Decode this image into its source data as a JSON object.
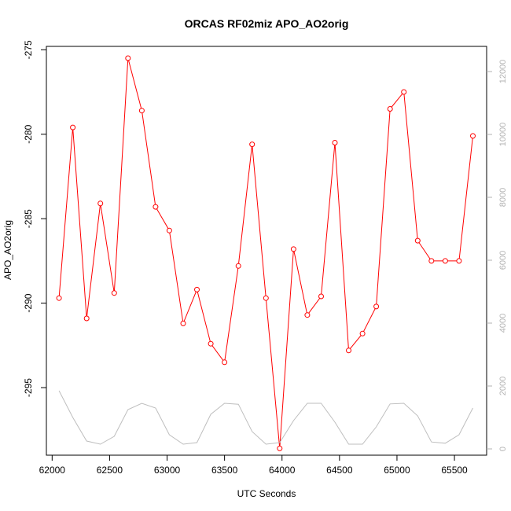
{
  "chart_data": {
    "type": "line",
    "title": "ORCAS RF02miz APO_AO2orig",
    "xlabel": "UTC Seconds",
    "ylabel": "APO_AO2orig",
    "xlim": [
      61950,
      65780
    ],
    "ylim": [
      -299.0,
      -274.8
    ],
    "y2lim": [
      -200,
      12800
    ],
    "x_ticks": [
      62000,
      62500,
      63000,
      63500,
      64000,
      64500,
      65000,
      65500
    ],
    "y_ticks": [
      -295,
      -290,
      -285,
      -280,
      -275
    ],
    "y2_ticks": [
      0,
      2000,
      4000,
      6000,
      8000,
      10000,
      12000
    ],
    "grid": false,
    "colors": {
      "primary": "#ff0000",
      "secondary": "#bebebe",
      "axis": "#000000",
      "right_axis": "#b3b3b3"
    },
    "series": [
      {
        "axis": "left",
        "style": "line+points",
        "x": [
          62060,
          62180,
          62300,
          62420,
          62540,
          62660,
          62780,
          62900,
          63020,
          63140,
          63260,
          63380,
          63500,
          63620,
          63740,
          63860,
          63980,
          64100,
          64220,
          64340,
          64460,
          64580,
          64700,
          64820,
          64940,
          65060,
          65180,
          65300,
          65420,
          65540,
          65660
        ],
        "y": [
          -289.7,
          -279.6,
          -290.9,
          -284.1,
          -289.4,
          -275.5,
          -278.6,
          -284.3,
          -285.7,
          -291.2,
          -289.2,
          -292.4,
          -293.5,
          -287.8,
          -280.6,
          -289.7,
          -298.6,
          -286.8,
          -290.7,
          -289.6,
          -280.5,
          -292.8,
          -291.8,
          -290.2,
          -278.5,
          -277.5,
          -286.3,
          -287.5,
          -287.5,
          -287.5,
          -280.1
        ]
      },
      {
        "axis": "right",
        "style": "line",
        "x": [
          62060,
          62180,
          62300,
          62420,
          62540,
          62660,
          62780,
          62900,
          63020,
          63140,
          63260,
          63380,
          63500,
          63620,
          63740,
          63860,
          63980,
          64100,
          64220,
          64340,
          64460,
          64580,
          64700,
          64820,
          64940,
          65060,
          65180,
          65300,
          65420,
          65540,
          65660
        ],
        "y": [
          1850,
          1000,
          250,
          150,
          400,
          1250,
          1450,
          1300,
          450,
          150,
          200,
          1100,
          1450,
          1420,
          550,
          150,
          200,
          900,
          1450,
          1450,
          850,
          150,
          150,
          700,
          1430,
          1450,
          1050,
          220,
          180,
          450,
          1300
        ]
      }
    ]
  }
}
